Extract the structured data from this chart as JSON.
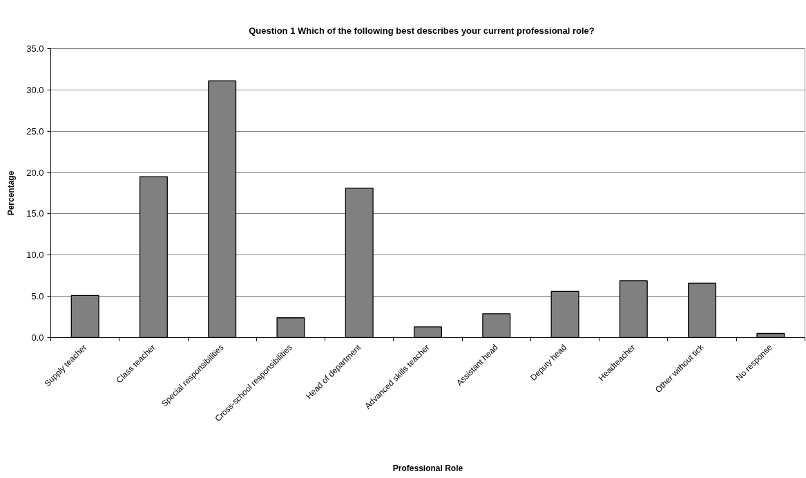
{
  "chart_data": {
    "type": "bar",
    "title": "Question 1      Which of the following best describes your current professional role?",
    "xlabel": "Professional Role",
    "ylabel": "Percentage",
    "categories": [
      "Supply teacher",
      "Class teacher",
      "Special responsibilities",
      "Cross-school responsibilities",
      "Head of department",
      "Advanced skills teacher",
      "Assistant head",
      "Deputy head",
      "Headteacher",
      "Other without tick",
      "No response"
    ],
    "values": [
      5.1,
      19.5,
      31.1,
      2.4,
      18.1,
      1.3,
      2.9,
      5.6,
      6.9,
      6.6,
      0.5
    ],
    "color": "#808080",
    "ylim": [
      0,
      35
    ],
    "yticks": [
      {
        "value": 0,
        "label": "0.0"
      },
      {
        "value": 5,
        "label": "5.0"
      },
      {
        "value": 10,
        "label": "10.0"
      },
      {
        "value": 15,
        "label": "15.0"
      },
      {
        "value": 20,
        "label": "20.0"
      },
      {
        "value": 25,
        "label": "25.0"
      },
      {
        "value": 30,
        "label": "30.0"
      },
      {
        "value": 35,
        "label": "35.0"
      }
    ],
    "grid": "y"
  }
}
